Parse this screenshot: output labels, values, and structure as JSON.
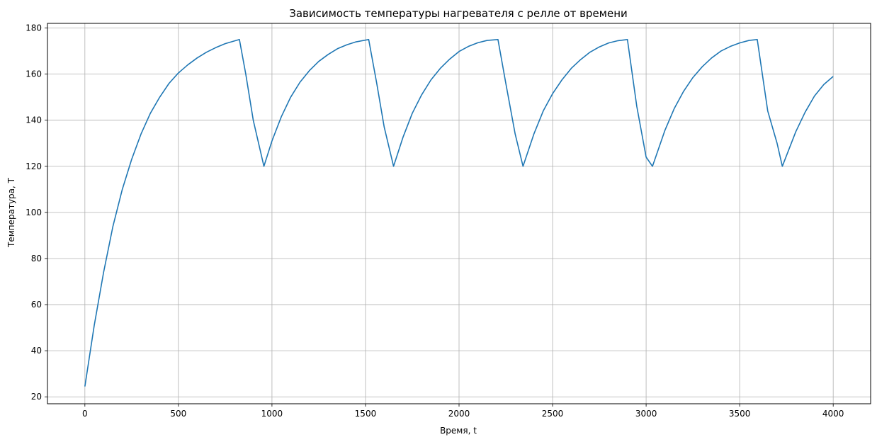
{
  "chart_data": {
    "type": "line",
    "title": "Зависимость температуры нагревателя с релле от времени",
    "xlabel": "Время, t",
    "ylabel": "Температура, T",
    "xlim": [
      -200,
      4200
    ],
    "ylim": [
      17,
      182
    ],
    "x_ticks": [
      0,
      500,
      1000,
      1500,
      2000,
      2500,
      3000,
      3500,
      4000
    ],
    "y_ticks": [
      20,
      40,
      60,
      80,
      100,
      120,
      140,
      160,
      180
    ],
    "grid": true,
    "line_color": "#1f77b4",
    "grid_color": "#b0b0b0",
    "series": [
      {
        "x": [
          0,
          50,
          100,
          150,
          200,
          250,
          300,
          350,
          400,
          450,
          500,
          550,
          600,
          650,
          700,
          750,
          800,
          826,
          860,
          900,
          957,
          1000,
          1050,
          1100,
          1150,
          1200,
          1250,
          1300,
          1350,
          1400,
          1450,
          1517,
          1560,
          1600,
          1650,
          1700,
          1750,
          1800,
          1850,
          1900,
          1950,
          2000,
          2050,
          2100,
          2150,
          2208,
          2250,
          2300,
          2342,
          2400,
          2450,
          2500,
          2550,
          2600,
          2650,
          2700,
          2750,
          2800,
          2850,
          2900,
          2950,
          3000,
          3034,
          3100,
          3150,
          3200,
          3250,
          3300,
          3350,
          3400,
          3450,
          3500,
          3550,
          3594,
          3650,
          3700,
          3728,
          3800,
          3850,
          3900,
          3950,
          4000
        ],
        "y": [
          24.5,
          51,
          74,
          94,
          110,
          123,
          134,
          143,
          150,
          156,
          160.5,
          164,
          167,
          169.5,
          171.5,
          173.2,
          174.4,
          175,
          160,
          140,
          120,
          131,
          141.5,
          150,
          156.5,
          161.5,
          165.5,
          168.5,
          171,
          172.7,
          174,
          175,
          156,
          137,
          120,
          132.5,
          143,
          151,
          157.5,
          162.5,
          166.5,
          169.8,
          172,
          173.6,
          174.6,
          175,
          156,
          134,
          120,
          134,
          144,
          151.5,
          157.5,
          162.5,
          166.3,
          169.5,
          171.8,
          173.5,
          174.5,
          175,
          146,
          124,
          120,
          135.5,
          145,
          152.5,
          158.5,
          163.2,
          167,
          170,
          172,
          173.5,
          174.6,
          175,
          144,
          130,
          120,
          135,
          143.5,
          150.5,
          155.5,
          159
        ]
      }
    ]
  }
}
